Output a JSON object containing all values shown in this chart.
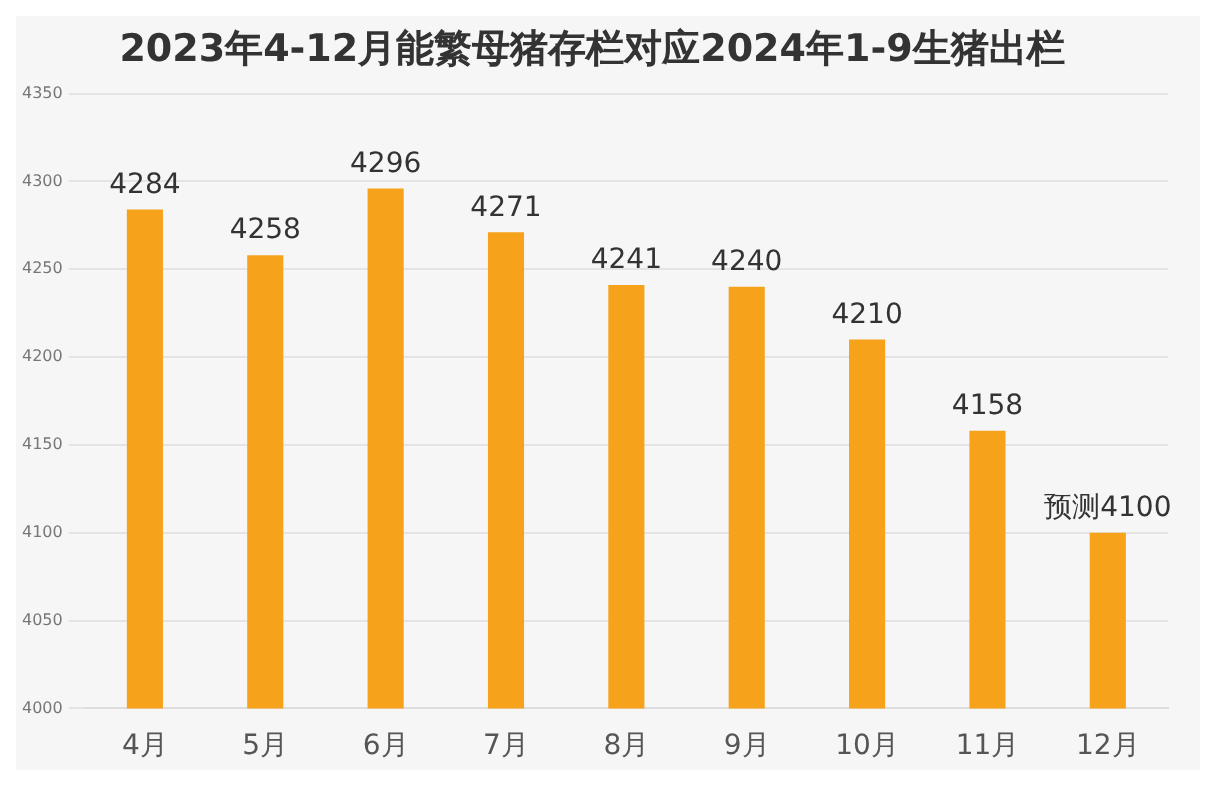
{
  "chart_data": {
    "type": "bar",
    "title": "2023年4-12月能繁母猪存栏对应2024年1-9生猪出栏",
    "categories": [
      "4月",
      "5月",
      "6月",
      "7月",
      "8月",
      "9月",
      "10月",
      "11月",
      "12月"
    ],
    "values": [
      4284,
      4258,
      4296,
      4271,
      4241,
      4240,
      4210,
      4158,
      4100
    ],
    "value_labels": [
      "4284",
      "4258",
      "4296",
      "4271",
      "4241",
      "4240",
      "4210",
      "4158",
      "预测4100"
    ],
    "color": "#f7a21b",
    "ylim": [
      4000,
      4350
    ],
    "yticks": [
      4000,
      4050,
      4100,
      4150,
      4200,
      4250,
      4300,
      4350
    ],
    "grid": "y",
    "legend": false
  }
}
